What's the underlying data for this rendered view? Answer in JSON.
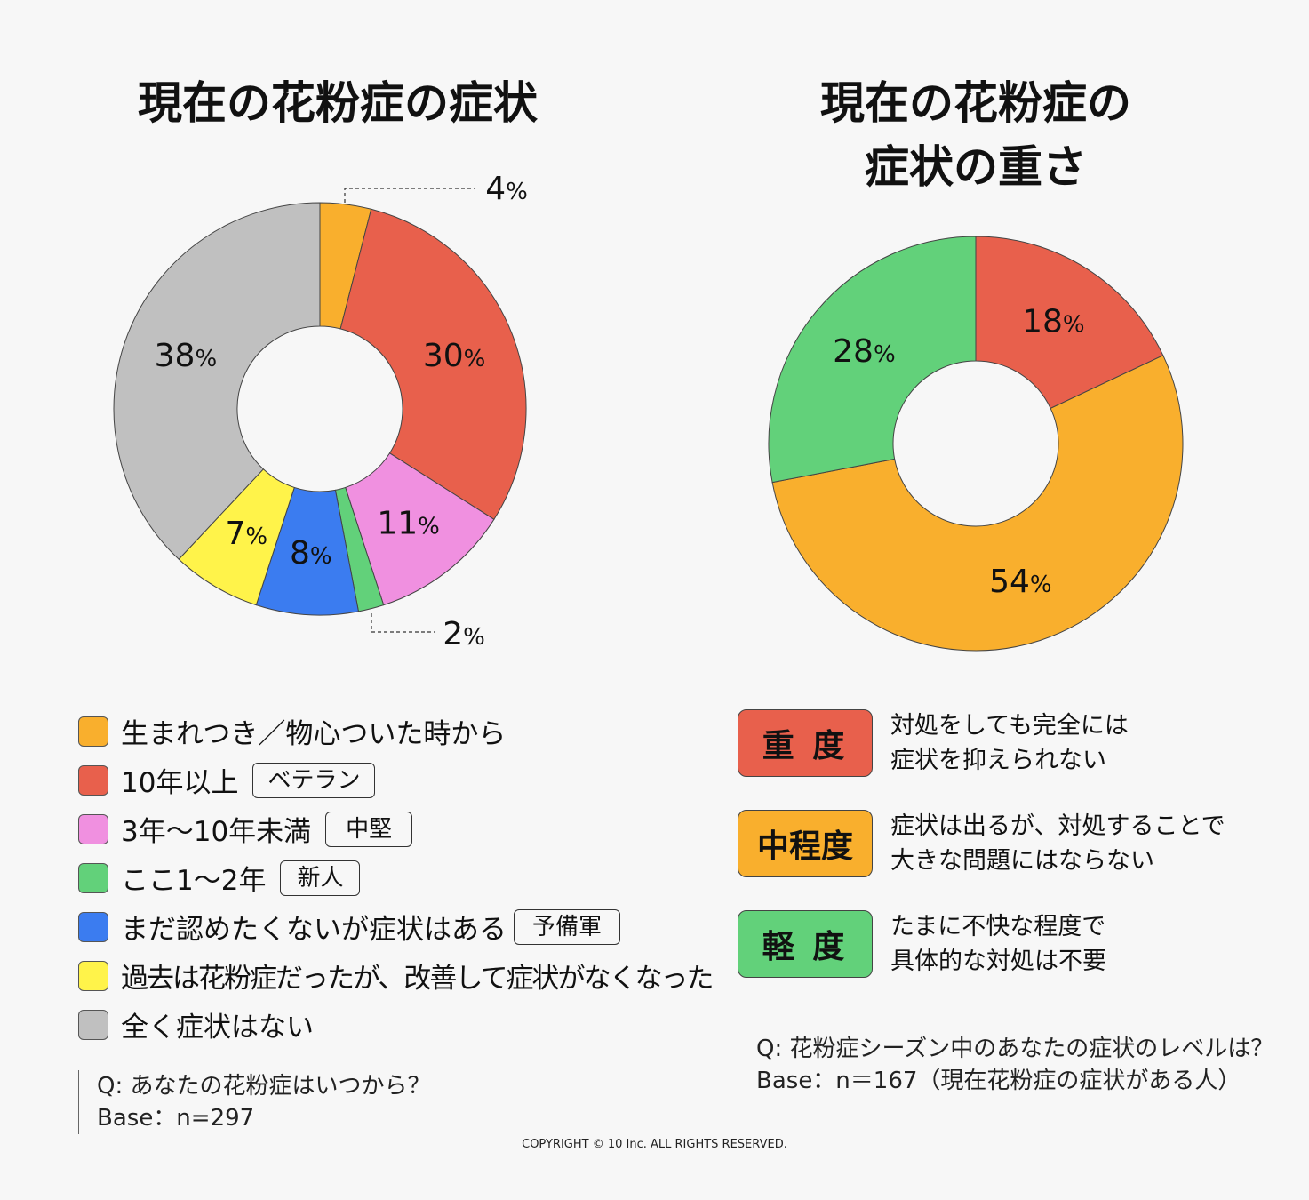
{
  "chart_data": [
    {
      "type": "pie",
      "donut": true,
      "title": "現在の花粉症の症状",
      "categories": [
        "生まれつき／物心ついた時から",
        "10年以上",
        "3年〜10年未満",
        "ここ1〜2年",
        "まだ認めたくないが症状はある",
        "過去は花粉症だったが、改善して症状がなくなった",
        "全く症状はない"
      ],
      "tags": [
        "",
        "ベテラン",
        "中堅",
        "新人",
        "予備軍",
        "",
        ""
      ],
      "values": [
        4,
        30,
        11,
        2,
        8,
        7,
        38
      ],
      "colors": [
        "#F9AF2D",
        "#E8604C",
        "#F090E0",
        "#62D17A",
        "#3B7CF0",
        "#FFF34A",
        "#C0C0C0"
      ],
      "unit": "%",
      "legend_position": "bottom",
      "note": {
        "question": "Q: あなたの花粉症はいつから？",
        "base": "Base：n=297"
      }
    },
    {
      "type": "pie",
      "donut": true,
      "title_lines": [
        "現在の花粉症の",
        "症状の重さ"
      ],
      "categories": [
        "重 度",
        "中程度",
        "軽 度"
      ],
      "descriptions": [
        [
          "対処をしても完全には",
          "症状を抑えられない"
        ],
        [
          "症状は出るが、対処することで",
          "大きな問題にはならない"
        ],
        [
          "たまに不快な程度で",
          "具体的な対処は不要"
        ]
      ],
      "values": [
        18,
        54,
        28
      ],
      "colors": [
        "#E8604C",
        "#F9AF2D",
        "#62D17A"
      ],
      "unit": "%",
      "legend_position": "bottom",
      "note": {
        "question": "Q: 花粉症シーズン中のあなたの症状のレベルは？",
        "base": "Base：n＝167（現在花粉症の症状がある人）"
      }
    }
  ],
  "copyright": "COPYRIGHT © 10 Inc. ALL RIGHTS RESERVED."
}
